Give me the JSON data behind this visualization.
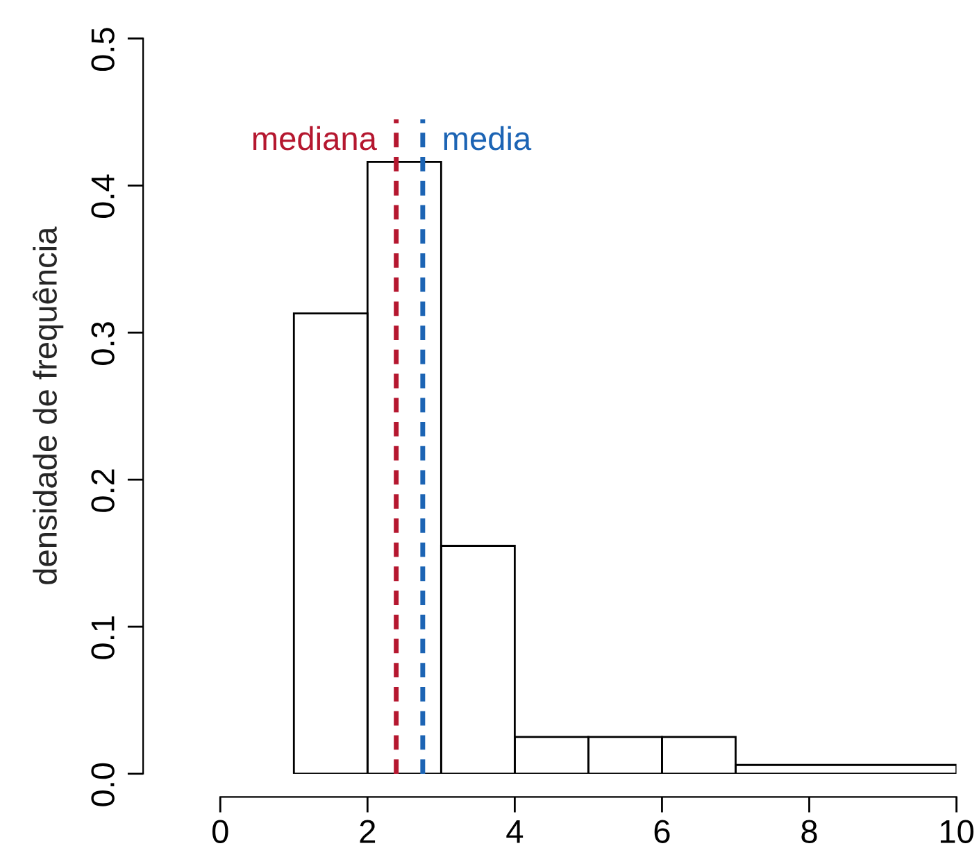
{
  "chart_data": {
    "type": "histogram",
    "ylabel": "densidade de frequência",
    "bins": [
      1,
      2,
      3,
      4,
      5,
      6,
      7,
      10
    ],
    "values": [
      0.313,
      0.416,
      0.155,
      0.025,
      0.025,
      0.025,
      0.006
    ],
    "xlim": [
      0,
      10
    ],
    "xticks": [
      0,
      2,
      4,
      6,
      8,
      10
    ],
    "ylim": [
      0,
      0.5
    ],
    "yticks": [
      {
        "value": 0,
        "label": "0.0"
      },
      0.1,
      0.2,
      0.3,
      0.4,
      0.5
    ],
    "ref_lines": [
      {
        "axis": "x",
        "value": 2.39,
        "label": "mediana",
        "color": "#b5172f",
        "line_style": "dashed"
      },
      {
        "axis": "x",
        "value": 2.75,
        "label": "media",
        "color": "#1c64b4",
        "line_style": "dashed"
      }
    ],
    "grid": false
  }
}
